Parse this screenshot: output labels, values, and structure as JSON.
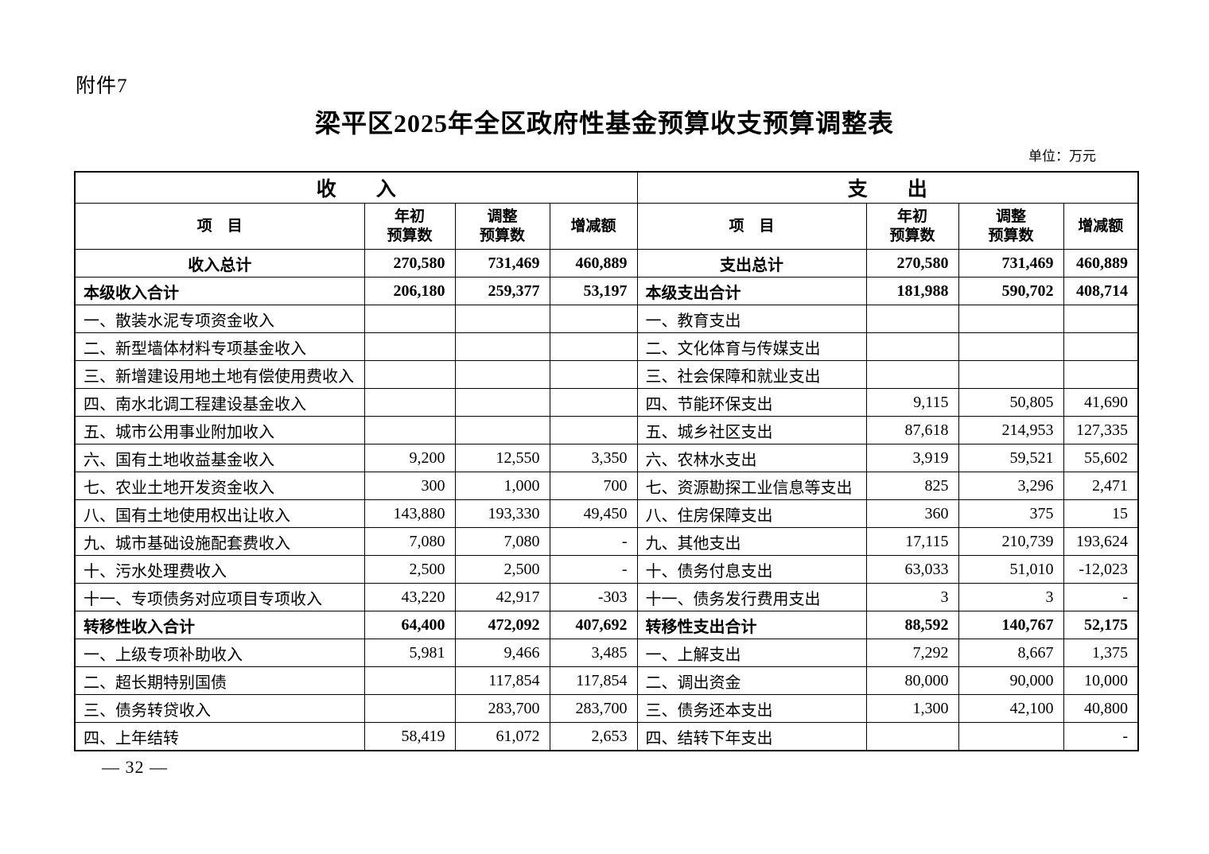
{
  "attachment": "附件7",
  "title": "梁平区2025年全区政府性基金预算收支预算调整表",
  "unit_label": "单位：万元",
  "page_number": "— 32 —",
  "table": {
    "revenue_header": "收　　入",
    "expenditure_header": "支　　出",
    "columns": {
      "item": "项　目",
      "initial": "年初\n预算数",
      "adjusted": "调整\n预算数",
      "change": "增减额"
    },
    "left_rows": [
      {
        "label": "收入总计",
        "bold": true,
        "center": true,
        "values": [
          "270,580",
          "731,469",
          "460,889"
        ]
      },
      {
        "label": "本级收入合计",
        "bold": true,
        "center": false,
        "values": [
          "206,180",
          "259,377",
          "53,197"
        ]
      },
      {
        "label": "一、散装水泥专项资金收入",
        "bold": false,
        "center": false,
        "values": [
          "",
          "",
          ""
        ]
      },
      {
        "label": "二、新型墙体材料专项基金收入",
        "bold": false,
        "center": false,
        "values": [
          "",
          "",
          ""
        ]
      },
      {
        "label": "三、新增建设用地土地有偿使用费收入",
        "bold": false,
        "center": false,
        "values": [
          "",
          "",
          ""
        ]
      },
      {
        "label": "四、南水北调工程建设基金收入",
        "bold": false,
        "center": false,
        "values": [
          "",
          "",
          ""
        ]
      },
      {
        "label": "五、城市公用事业附加收入",
        "bold": false,
        "center": false,
        "values": [
          "",
          "",
          ""
        ]
      },
      {
        "label": "六、国有土地收益基金收入",
        "bold": false,
        "center": false,
        "values": [
          "9,200",
          "12,550",
          "3,350"
        ]
      },
      {
        "label": "七、农业土地开发资金收入",
        "bold": false,
        "center": false,
        "values": [
          "300",
          "1,000",
          "700"
        ]
      },
      {
        "label": "八、国有土地使用权出让收入",
        "bold": false,
        "center": false,
        "values": [
          "143,880",
          "193,330",
          "49,450"
        ]
      },
      {
        "label": "九、城市基础设施配套费收入",
        "bold": false,
        "center": false,
        "values": [
          "7,080",
          "7,080",
          "-"
        ]
      },
      {
        "label": "十、污水处理费收入",
        "bold": false,
        "center": false,
        "values": [
          "2,500",
          "2,500",
          "-"
        ]
      },
      {
        "label": "十一、专项债务对应项目专项收入",
        "bold": false,
        "center": false,
        "values": [
          "43,220",
          "42,917",
          "-303"
        ]
      },
      {
        "label": "转移性收入合计",
        "bold": true,
        "center": false,
        "values": [
          "64,400",
          "472,092",
          "407,692"
        ]
      },
      {
        "label": "一、上级专项补助收入",
        "bold": false,
        "center": false,
        "values": [
          "5,981",
          "9,466",
          "3,485"
        ]
      },
      {
        "label": "二、超长期特别国债",
        "bold": false,
        "center": false,
        "values": [
          "",
          "117,854",
          "117,854"
        ]
      },
      {
        "label": "三、债务转贷收入",
        "bold": false,
        "center": false,
        "values": [
          "",
          "283,700",
          "283,700"
        ]
      },
      {
        "label": "四、上年结转",
        "bold": false,
        "center": false,
        "values": [
          "58,419",
          "61,072",
          "2,653"
        ]
      }
    ],
    "right_rows": [
      {
        "label": "支出总计",
        "bold": true,
        "center": true,
        "values": [
          "270,580",
          "731,469",
          "460,889"
        ]
      },
      {
        "label": "本级支出合计",
        "bold": true,
        "center": false,
        "values": [
          "181,988",
          "590,702",
          "408,714"
        ]
      },
      {
        "label": "一、教育支出",
        "bold": false,
        "center": false,
        "values": [
          "",
          "",
          ""
        ]
      },
      {
        "label": "二、文化体育与传媒支出",
        "bold": false,
        "center": false,
        "values": [
          "",
          "",
          ""
        ]
      },
      {
        "label": "三、社会保障和就业支出",
        "bold": false,
        "center": false,
        "values": [
          "",
          "",
          ""
        ]
      },
      {
        "label": "四、节能环保支出",
        "bold": false,
        "center": false,
        "values": [
          "9,115",
          "50,805",
          "41,690"
        ]
      },
      {
        "label": "五、城乡社区支出",
        "bold": false,
        "center": false,
        "values": [
          "87,618",
          "214,953",
          "127,335"
        ]
      },
      {
        "label": "六、农林水支出",
        "bold": false,
        "center": false,
        "values": [
          "3,919",
          "59,521",
          "55,602"
        ]
      },
      {
        "label": "七、资源勘探工业信息等支出",
        "bold": false,
        "center": false,
        "values": [
          "825",
          "3,296",
          "2,471"
        ]
      },
      {
        "label": "八、住房保障支出",
        "bold": false,
        "center": false,
        "values": [
          "360",
          "375",
          "15"
        ]
      },
      {
        "label": "九、其他支出",
        "bold": false,
        "center": false,
        "values": [
          "17,115",
          "210,739",
          "193,624"
        ]
      },
      {
        "label": "十、债务付息支出",
        "bold": false,
        "center": false,
        "values": [
          "63,033",
          "51,010",
          "-12,023"
        ]
      },
      {
        "label": "十一、债务发行费用支出",
        "bold": false,
        "center": false,
        "values": [
          "3",
          "3",
          "-"
        ]
      },
      {
        "label": "转移性支出合计",
        "bold": true,
        "center": false,
        "values": [
          "88,592",
          "140,767",
          "52,175"
        ]
      },
      {
        "label": "一、上解支出",
        "bold": false,
        "center": false,
        "values": [
          "7,292",
          "8,667",
          "1,375"
        ]
      },
      {
        "label": "二、调出资金",
        "bold": false,
        "center": false,
        "values": [
          "80,000",
          "90,000",
          "10,000"
        ]
      },
      {
        "label": "三、债务还本支出",
        "bold": false,
        "center": false,
        "values": [
          "1,300",
          "42,100",
          "40,800"
        ]
      },
      {
        "label": "四、结转下年支出",
        "bold": false,
        "center": false,
        "values": [
          "",
          "",
          "-"
        ]
      }
    ]
  }
}
